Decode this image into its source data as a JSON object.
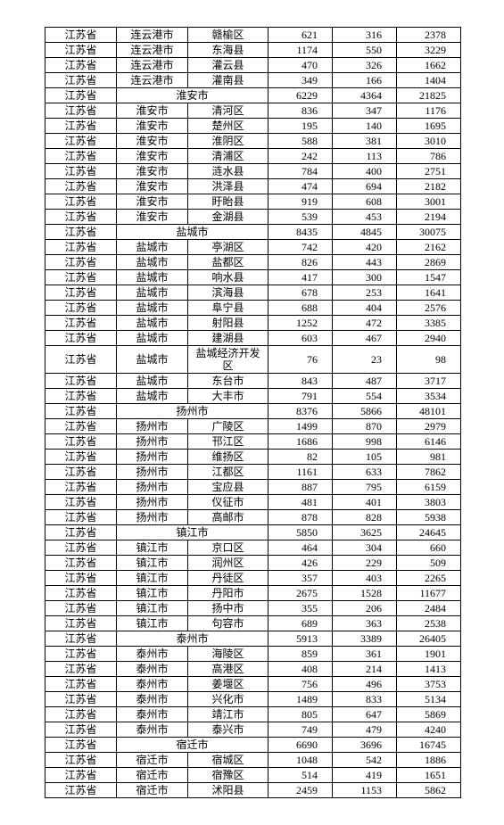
{
  "rows": [
    {
      "prov": "江苏省",
      "city": "连云港市",
      "dist": "赣榆区",
      "a": "621",
      "b": "316",
      "c": "2378"
    },
    {
      "prov": "江苏省",
      "city": "连云港市",
      "dist": "东海县",
      "a": "1174",
      "b": "550",
      "c": "3229"
    },
    {
      "prov": "江苏省",
      "city": "连云港市",
      "dist": "灌云县",
      "a": "470",
      "b": "326",
      "c": "1662"
    },
    {
      "prov": "江苏省",
      "city": "连云港市",
      "dist": "灌南县",
      "a": "349",
      "b": "166",
      "c": "1404"
    },
    {
      "prov": "江苏省",
      "city": "淮安市",
      "dist": "",
      "a": "6229",
      "b": "4364",
      "c": "21825",
      "span": true
    },
    {
      "prov": "江苏省",
      "city": "淮安市",
      "dist": "清河区",
      "a": "836",
      "b": "347",
      "c": "1176"
    },
    {
      "prov": "江苏省",
      "city": "淮安市",
      "dist": "楚州区",
      "a": "195",
      "b": "140",
      "c": "1695"
    },
    {
      "prov": "江苏省",
      "city": "淮安市",
      "dist": "淮阴区",
      "a": "588",
      "b": "381",
      "c": "3010"
    },
    {
      "prov": "江苏省",
      "city": "淮安市",
      "dist": "清浦区",
      "a": "242",
      "b": "113",
      "c": "786"
    },
    {
      "prov": "江苏省",
      "city": "淮安市",
      "dist": "涟水县",
      "a": "784",
      "b": "400",
      "c": "2751"
    },
    {
      "prov": "江苏省",
      "city": "淮安市",
      "dist": "洪泽县",
      "a": "474",
      "b": "694",
      "c": "2182"
    },
    {
      "prov": "江苏省",
      "city": "淮安市",
      "dist": "盱眙县",
      "a": "919",
      "b": "608",
      "c": "3001"
    },
    {
      "prov": "江苏省",
      "city": "淮安市",
      "dist": "金湖县",
      "a": "539",
      "b": "453",
      "c": "2194"
    },
    {
      "prov": "江苏省",
      "city": "盐城市",
      "dist": "",
      "a": "8435",
      "b": "4845",
      "c": "30075",
      "span": true
    },
    {
      "prov": "江苏省",
      "city": "盐城市",
      "dist": "亭湖区",
      "a": "742",
      "b": "420",
      "c": "2162"
    },
    {
      "prov": "江苏省",
      "city": "盐城市",
      "dist": "盐都区",
      "a": "826",
      "b": "443",
      "c": "2869"
    },
    {
      "prov": "江苏省",
      "city": "盐城市",
      "dist": "响水县",
      "a": "417",
      "b": "300",
      "c": "1547"
    },
    {
      "prov": "江苏省",
      "city": "盐城市",
      "dist": "滨海县",
      "a": "678",
      "b": "253",
      "c": "1641"
    },
    {
      "prov": "江苏省",
      "city": "盐城市",
      "dist": "阜宁县",
      "a": "688",
      "b": "404",
      "c": "2576"
    },
    {
      "prov": "江苏省",
      "city": "盐城市",
      "dist": "射阳县",
      "a": "1252",
      "b": "472",
      "c": "3385"
    },
    {
      "prov": "江苏省",
      "city": "盐城市",
      "dist": "建湖县",
      "a": "603",
      "b": "467",
      "c": "2940"
    },
    {
      "prov": "江苏省",
      "city": "盐城市",
      "dist": "盐城经济开发区",
      "a": "76",
      "b": "23",
      "c": "98",
      "tall": true
    },
    {
      "prov": "江苏省",
      "city": "盐城市",
      "dist": "东台市",
      "a": "843",
      "b": "487",
      "c": "3717"
    },
    {
      "prov": "江苏省",
      "city": "盐城市",
      "dist": "大丰市",
      "a": "791",
      "b": "554",
      "c": "3534"
    },
    {
      "prov": "江苏省",
      "city": "扬州市",
      "dist": "",
      "a": "8376",
      "b": "5866",
      "c": "48101",
      "span": true
    },
    {
      "prov": "江苏省",
      "city": "扬州市",
      "dist": "广陵区",
      "a": "1499",
      "b": "870",
      "c": "2979"
    },
    {
      "prov": "江苏省",
      "city": "扬州市",
      "dist": "邗江区",
      "a": "1686",
      "b": "998",
      "c": "6146"
    },
    {
      "prov": "江苏省",
      "city": "扬州市",
      "dist": "维扬区",
      "a": "82",
      "b": "105",
      "c": "981"
    },
    {
      "prov": "江苏省",
      "city": "扬州市",
      "dist": "江都区",
      "a": "1161",
      "b": "633",
      "c": "7862"
    },
    {
      "prov": "江苏省",
      "city": "扬州市",
      "dist": "宝应县",
      "a": "887",
      "b": "795",
      "c": "6159"
    },
    {
      "prov": "江苏省",
      "city": "扬州市",
      "dist": "仪征市",
      "a": "481",
      "b": "401",
      "c": "3803"
    },
    {
      "prov": "江苏省",
      "city": "扬州市",
      "dist": "高邮市",
      "a": "878",
      "b": "828",
      "c": "5938"
    },
    {
      "prov": "江苏省",
      "city": "镇江市",
      "dist": "",
      "a": "5850",
      "b": "3625",
      "c": "24645",
      "span": true
    },
    {
      "prov": "江苏省",
      "city": "镇江市",
      "dist": "京口区",
      "a": "464",
      "b": "304",
      "c": "660"
    },
    {
      "prov": "江苏省",
      "city": "镇江市",
      "dist": "润州区",
      "a": "426",
      "b": "229",
      "c": "509"
    },
    {
      "prov": "江苏省",
      "city": "镇江市",
      "dist": "丹徒区",
      "a": "357",
      "b": "403",
      "c": "2265"
    },
    {
      "prov": "江苏省",
      "city": "镇江市",
      "dist": "丹阳市",
      "a": "2675",
      "b": "1528",
      "c": "11677"
    },
    {
      "prov": "江苏省",
      "city": "镇江市",
      "dist": "扬中市",
      "a": "355",
      "b": "206",
      "c": "2484"
    },
    {
      "prov": "江苏省",
      "city": "镇江市",
      "dist": "句容市",
      "a": "689",
      "b": "363",
      "c": "2538"
    },
    {
      "prov": "江苏省",
      "city": "泰州市",
      "dist": "",
      "a": "5913",
      "b": "3389",
      "c": "26405",
      "span": true
    },
    {
      "prov": "江苏省",
      "city": "泰州市",
      "dist": "海陵区",
      "a": "859",
      "b": "361",
      "c": "1901"
    },
    {
      "prov": "江苏省",
      "city": "泰州市",
      "dist": "高港区",
      "a": "408",
      "b": "214",
      "c": "1413"
    },
    {
      "prov": "江苏省",
      "city": "泰州市",
      "dist": "姜堰区",
      "a": "756",
      "b": "496",
      "c": "3753"
    },
    {
      "prov": "江苏省",
      "city": "泰州市",
      "dist": "兴化市",
      "a": "1489",
      "b": "833",
      "c": "5134"
    },
    {
      "prov": "江苏省",
      "city": "泰州市",
      "dist": "靖江市",
      "a": "805",
      "b": "647",
      "c": "5869"
    },
    {
      "prov": "江苏省",
      "city": "泰州市",
      "dist": "泰兴市",
      "a": "749",
      "b": "479",
      "c": "4240"
    },
    {
      "prov": "江苏省",
      "city": "宿迁市",
      "dist": "",
      "a": "6690",
      "b": "3696",
      "c": "16745",
      "span": true
    },
    {
      "prov": "江苏省",
      "city": "宿迁市",
      "dist": "宿城区",
      "a": "1048",
      "b": "542",
      "c": "1886"
    },
    {
      "prov": "江苏省",
      "city": "宿迁市",
      "dist": "宿豫区",
      "a": "514",
      "b": "419",
      "c": "1651"
    },
    {
      "prov": "江苏省",
      "city": "宿迁市",
      "dist": "沭阳县",
      "a": "2459",
      "b": "1153",
      "c": "5862"
    }
  ]
}
